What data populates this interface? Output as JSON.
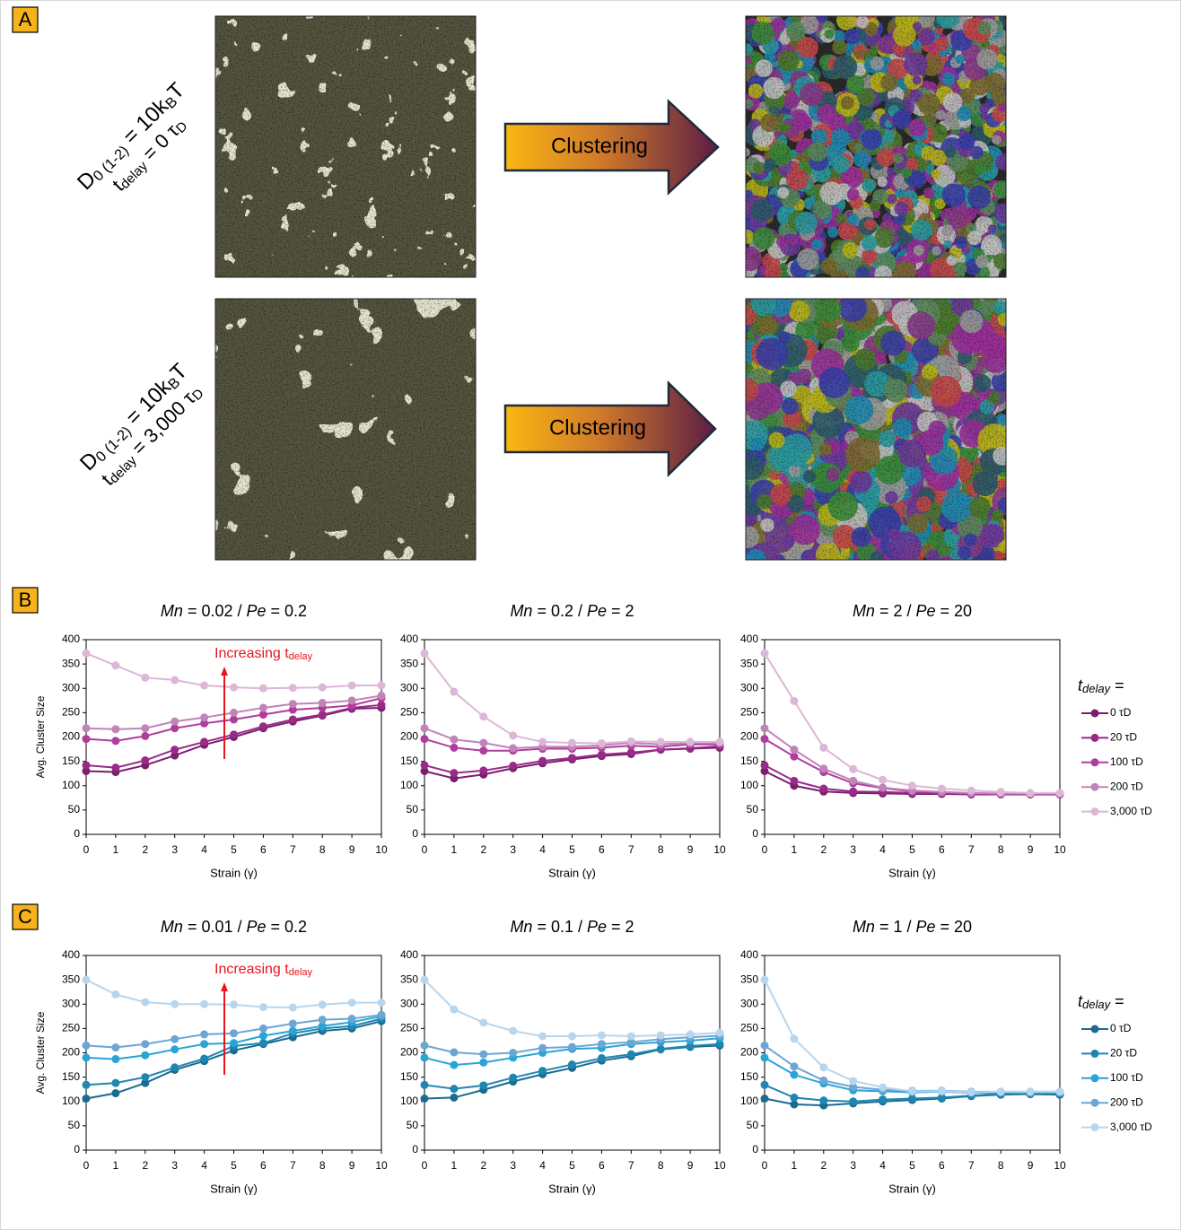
{
  "panels": {
    "a": "A",
    "b": "B",
    "c": "C"
  },
  "panel_a": {
    "rows": [
      {
        "label_line1": [
          "D",
          "0 (1-2)",
          " = 10k",
          "B",
          "T"
        ],
        "label_line2": [
          "t",
          "delay",
          " = 0 τ",
          "D"
        ],
        "arrow_text": "Clustering"
      },
      {
        "label_line1": [
          "D",
          "0 (1-2)",
          " = 10k",
          "B",
          "T"
        ],
        "label_line2": [
          "t",
          "delay",
          " = 3,000 τ",
          "D"
        ],
        "arrow_text": "Clustering"
      }
    ]
  },
  "chart_data": [
    {
      "type": "line",
      "title": [
        "Mn",
        " = 0.02 / ",
        "Pe",
        " = 0.2"
      ],
      "xlabel": "Strain (γ)",
      "ylabel": "Avg. Cluster Size",
      "annotation": [
        "Increasing t",
        "delay"
      ],
      "x": [
        0,
        1,
        2,
        3,
        4,
        5,
        6,
        7,
        8,
        9,
        10
      ],
      "xlim": [
        0,
        10
      ],
      "xticks": [
        0,
        1,
        2,
        3,
        4,
        5,
        6,
        7,
        8,
        9,
        10
      ],
      "ylim": [
        0,
        400
      ],
      "yticks": [
        0,
        50,
        100,
        150,
        200,
        250,
        300,
        350,
        400
      ],
      "series": [
        {
          "color": "#7a1f6c",
          "values": [
            130,
            128,
            142,
            162,
            184,
            200,
            218,
            232,
            244,
            258,
            260
          ]
        },
        {
          "color": "#982a88",
          "values": [
            142,
            137,
            152,
            174,
            190,
            205,
            222,
            236,
            246,
            260,
            266
          ]
        },
        {
          "color": "#b03d9e",
          "values": [
            196,
            192,
            202,
            218,
            228,
            236,
            246,
            256,
            260,
            265,
            280
          ]
        },
        {
          "color": "#c283b8",
          "values": [
            218,
            216,
            218,
            232,
            240,
            250,
            260,
            268,
            270,
            275,
            285
          ]
        },
        {
          "color": "#dcb7d7",
          "values": [
            372,
            347,
            322,
            317,
            306,
            302,
            300,
            301,
            302,
            306,
            306
          ]
        }
      ]
    },
    {
      "type": "line",
      "title": [
        "Mn",
        " = 0.2 / ",
        "Pe",
        " = 2"
      ],
      "xlabel": "Strain (γ)",
      "x": [
        0,
        1,
        2,
        3,
        4,
        5,
        6,
        7,
        8,
        9,
        10
      ],
      "xlim": [
        0,
        10
      ],
      "xticks": [
        0,
        1,
        2,
        3,
        4,
        5,
        6,
        7,
        8,
        9,
        10
      ],
      "ylim": [
        0,
        400
      ],
      "yticks": [
        0,
        50,
        100,
        150,
        200,
        250,
        300,
        350,
        400
      ],
      "series": [
        {
          "color": "#7a1f6c",
          "values": [
            130,
            115,
            123,
            136,
            146,
            154,
            161,
            165,
            174,
            176,
            178
          ]
        },
        {
          "color": "#982a88",
          "values": [
            142,
            126,
            131,
            141,
            151,
            157,
            164,
            168,
            174,
            177,
            181
          ]
        },
        {
          "color": "#b03d9e",
          "values": [
            196,
            178,
            172,
            172,
            176,
            176,
            178,
            182,
            180,
            185,
            185
          ]
        },
        {
          "color": "#c283b8",
          "values": [
            218,
            195,
            188,
            177,
            180,
            180,
            183,
            188,
            185,
            188,
            188
          ]
        },
        {
          "color": "#dcb7d7",
          "values": [
            372,
            293,
            242,
            203,
            190,
            188,
            187,
            191,
            190,
            190,
            190
          ]
        }
      ]
    },
    {
      "type": "line",
      "title": [
        "Mn",
        " = 2 / ",
        "Pe",
        " = 20"
      ],
      "xlabel": "Strain (γ)",
      "legend_title": [
        "t",
        "delay",
        " ="
      ],
      "x": [
        0,
        1,
        2,
        3,
        4,
        5,
        6,
        7,
        8,
        9,
        10
      ],
      "xlim": [
        0,
        10
      ],
      "xticks": [
        0,
        1,
        2,
        3,
        4,
        5,
        6,
        7,
        8,
        9,
        10
      ],
      "ylim": [
        0,
        400
      ],
      "yticks": [
        0,
        50,
        100,
        150,
        200,
        250,
        300,
        350,
        400
      ],
      "series": [
        {
          "name": "0 τD",
          "color": "#7a1f6c",
          "values": [
            130,
            100,
            88,
            85,
            84,
            83,
            83,
            82,
            82,
            82,
            82
          ]
        },
        {
          "name": "20 τD",
          "color": "#982a88",
          "values": [
            142,
            110,
            94,
            88,
            87,
            85,
            84,
            83,
            83,
            83,
            83
          ]
        },
        {
          "name": "100 τD",
          "color": "#b03d9e",
          "values": [
            196,
            160,
            128,
            105,
            95,
            88,
            86,
            84,
            83,
            83,
            83
          ]
        },
        {
          "name": "200 τD",
          "color": "#c283b8",
          "values": [
            218,
            174,
            135,
            110,
            96,
            90,
            87,
            85,
            84,
            84,
            84
          ]
        },
        {
          "name": "3,000 τD",
          "color": "#dcb7d7",
          "values": [
            372,
            274,
            178,
            134,
            112,
            100,
            94,
            90,
            87,
            85,
            85
          ]
        }
      ]
    },
    {
      "type": "line",
      "title": [
        "Mn",
        " = 0.01 / ",
        "Pe",
        " = 0.2"
      ],
      "xlabel": "Strain (γ)",
      "ylabel": "Avg. Cluster Size",
      "annotation": [
        "Increasing t",
        "delay"
      ],
      "x": [
        0,
        1,
        2,
        3,
        4,
        5,
        6,
        7,
        8,
        9,
        10
      ],
      "xlim": [
        0,
        10
      ],
      "xticks": [
        0,
        1,
        2,
        3,
        4,
        5,
        6,
        7,
        8,
        9,
        10
      ],
      "ylim": [
        0,
        400
      ],
      "yticks": [
        0,
        50,
        100,
        150,
        200,
        250,
        300,
        350,
        400
      ],
      "series": [
        {
          "color": "#1b6b8f",
          "values": [
            106,
            117,
            138,
            165,
            183,
            205,
            218,
            232,
            245,
            250,
            265
          ]
        },
        {
          "color": "#1f86b1",
          "values": [
            134,
            138,
            150,
            170,
            188,
            214,
            220,
            240,
            250,
            255,
            270
          ]
        },
        {
          "color": "#2aa4d4",
          "values": [
            190,
            187,
            195,
            207,
            218,
            220,
            235,
            245,
            255,
            263,
            275
          ]
        },
        {
          "color": "#6ba6d4",
          "values": [
            215,
            211,
            218,
            228,
            238,
            240,
            250,
            260,
            268,
            270,
            278
          ]
        },
        {
          "color": "#b7d6ee",
          "values": [
            350,
            320,
            304,
            300,
            300,
            299,
            294,
            293,
            299,
            303,
            303
          ]
        }
      ]
    },
    {
      "type": "line",
      "title": [
        "Mn",
        " = 0.1 / ",
        "Pe",
        " = 2"
      ],
      "xlabel": "Strain (γ)",
      "x": [
        0,
        1,
        2,
        3,
        4,
        5,
        6,
        7,
        8,
        9,
        10
      ],
      "xlim": [
        0,
        10
      ],
      "xticks": [
        0,
        1,
        2,
        3,
        4,
        5,
        6,
        7,
        8,
        9,
        10
      ],
      "ylim": [
        0,
        400
      ],
      "yticks": [
        0,
        50,
        100,
        150,
        200,
        250,
        300,
        350,
        400
      ],
      "series": [
        {
          "color": "#1b6b8f",
          "values": [
            106,
            108,
            124,
            141,
            156,
            169,
            184,
            193,
            207,
            212,
            215
          ]
        },
        {
          "color": "#1f86b1",
          "values": [
            134,
            126,
            133,
            149,
            163,
            176,
            189,
            197,
            208,
            214,
            218
          ]
        },
        {
          "color": "#2aa4d4",
          "values": [
            190,
            175,
            180,
            190,
            200,
            208,
            210,
            218,
            222,
            225,
            230
          ]
        },
        {
          "color": "#6ba6d4",
          "values": [
            215,
            201,
            197,
            200,
            210,
            212,
            218,
            222,
            228,
            232,
            235
          ]
        },
        {
          "color": "#b7d6ee",
          "values": [
            350,
            289,
            262,
            245,
            234,
            234,
            236,
            234,
            236,
            238,
            241
          ]
        }
      ]
    },
    {
      "type": "line",
      "title": [
        "Mn",
        " = 1 / ",
        "Pe",
        " = 20"
      ],
      "xlabel": "Strain (γ)",
      "legend_title": [
        "t",
        "delay",
        " ="
      ],
      "x": [
        0,
        1,
        2,
        3,
        4,
        5,
        6,
        7,
        8,
        9,
        10
      ],
      "xlim": [
        0,
        10
      ],
      "xticks": [
        0,
        1,
        2,
        3,
        4,
        5,
        6,
        7,
        8,
        9,
        10
      ],
      "ylim": [
        0,
        400
      ],
      "yticks": [
        0,
        50,
        100,
        150,
        200,
        250,
        300,
        350,
        400
      ],
      "series": [
        {
          "name": "0 τD",
          "color": "#1b6b8f",
          "values": [
            106,
            94,
            92,
            96,
            100,
            103,
            106,
            111,
            114,
            115,
            114
          ]
        },
        {
          "name": "20 τD",
          "color": "#1f86b1",
          "values": [
            134,
            108,
            102,
            100,
            104,
            106,
            108,
            112,
            116,
            116,
            116
          ]
        },
        {
          "name": "100 τD",
          "color": "#2aa4d4",
          "values": [
            190,
            155,
            137,
            123,
            121,
            119,
            120,
            118,
            118,
            118,
            118
          ]
        },
        {
          "name": "200 τD",
          "color": "#6ba6d4",
          "values": [
            215,
            172,
            143,
            130,
            124,
            122,
            122,
            120,
            120,
            120,
            120
          ]
        },
        {
          "name": "3,000 τD",
          "color": "#b7d6ee",
          "values": [
            350,
            229,
            170,
            142,
            129,
            121,
            121,
            119,
            120,
            120,
            120
          ]
        }
      ]
    }
  ]
}
